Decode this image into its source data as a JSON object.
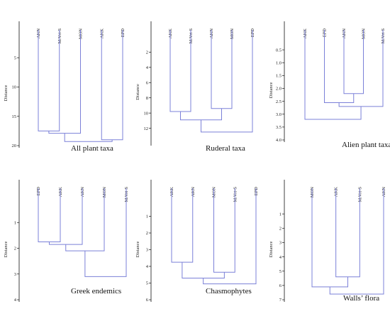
{
  "colors": {
    "branch": "#7b80d8",
    "axis": "#111111",
    "text": "#222222"
  },
  "chart_data": [
    {
      "type": "dendrogram",
      "title": "All plant taxa",
      "ylabel": "Distance",
      "yticks": [
        5,
        10,
        15,
        20
      ],
      "ylim": [
        0,
        20
      ],
      "leaves": [
        "AKN",
        "M.Vrt-S",
        "MON",
        "AKK",
        "EPD"
      ],
      "merges": [
        {
          "left": "AKN",
          "right": "M.Vrt-S",
          "height": 17.5
        },
        {
          "left": 5,
          "right": "MON",
          "height": 17.9
        },
        {
          "left": "AKK",
          "right": "EPD",
          "height": 19.0
        },
        {
          "left": 6,
          "right": 7,
          "height": 19.3
        }
      ]
    },
    {
      "type": "dendrogram",
      "title": "Ruderal taxa",
      "ylabel": "Distance",
      "yticks": [
        2,
        4,
        6,
        8,
        10,
        12
      ],
      "ylim": [
        0,
        14
      ],
      "leaves": [
        "AKK",
        "M.Vrt-S",
        "AKN",
        "MON",
        "EPD"
      ],
      "merges": [
        {
          "left": "AKK",
          "right": "M.Vrt-S",
          "height": 9.8
        },
        {
          "left": "AKN",
          "right": "MON",
          "height": 9.4
        },
        {
          "left": 5,
          "right": 6,
          "height": 10.9
        },
        {
          "left": 7,
          "right": "EPD",
          "height": 12.5
        }
      ]
    },
    {
      "type": "dendrogram",
      "title": "Alien plant taxa",
      "ylabel": "Distance",
      "yticks": [
        0.5,
        1.0,
        1.5,
        2.0,
        2.5,
        3.0,
        3.5,
        4.0
      ],
      "ylim": [
        0,
        4.0
      ],
      "leaves": [
        "AKK",
        "EPD",
        "AKN",
        "MON",
        "M.Vrt-S"
      ],
      "merges": [
        {
          "left": "AKN",
          "right": "MON",
          "height": 2.2
        },
        {
          "left": "EPD",
          "right": 5,
          "height": 2.55
        },
        {
          "left": 6,
          "right": "M.Vrt-S",
          "height": 2.7
        },
        {
          "left": "AKK",
          "right": 7,
          "height": 3.2
        }
      ]
    },
    {
      "type": "dendrogram",
      "title": "Greek endemics",
      "ylabel": "Distance",
      "yticks": [
        1,
        2,
        3,
        4
      ],
      "ylim": [
        0,
        4
      ],
      "leaves": [
        "EPD",
        "AKK",
        "AKN",
        "MON",
        "M.Vrt-S"
      ],
      "merges": [
        {
          "left": "EPD",
          "right": "AKK",
          "height": 1.75
        },
        {
          "left": 5,
          "right": "AKN",
          "height": 1.85
        },
        {
          "left": 6,
          "right": "MON",
          "height": 2.1
        },
        {
          "left": 7,
          "right": "M.Vrt-S",
          "height": 3.1
        }
      ]
    },
    {
      "type": "dendrogram",
      "title": "Chasmophytes",
      "ylabel": "Distance",
      "yticks": [
        1,
        2,
        3,
        4,
        5,
        6
      ],
      "ylim": [
        0,
        6
      ],
      "leaves": [
        "AKK",
        "AKN",
        "MON",
        "M.Vrt-S",
        "EPD"
      ],
      "merges": [
        {
          "left": "AKK",
          "right": "AKN",
          "height": 3.75
        },
        {
          "left": "MON",
          "right": "M.Vrt-S",
          "height": 4.35
        },
        {
          "left": 5,
          "right": 6,
          "height": 4.7
        },
        {
          "left": 7,
          "right": "EPD",
          "height": 5.05
        }
      ]
    },
    {
      "type": "dendrogram",
      "title": "Walls’ flora",
      "ylabel": "Distance",
      "yticks": [
        1,
        2,
        3,
        4,
        5,
        6,
        7
      ],
      "ylim": [
        0,
        7
      ],
      "leaves": [
        "MON",
        "AKK",
        "M.Vrt-S",
        "AKN"
      ],
      "merges": [
        {
          "left": "AKK",
          "right": "M.Vrt-S",
          "height": 5.4
        },
        {
          "left": "MON",
          "right": 4,
          "height": 6.1
        },
        {
          "left": 5,
          "right": "AKN",
          "height": 6.6
        }
      ]
    }
  ]
}
